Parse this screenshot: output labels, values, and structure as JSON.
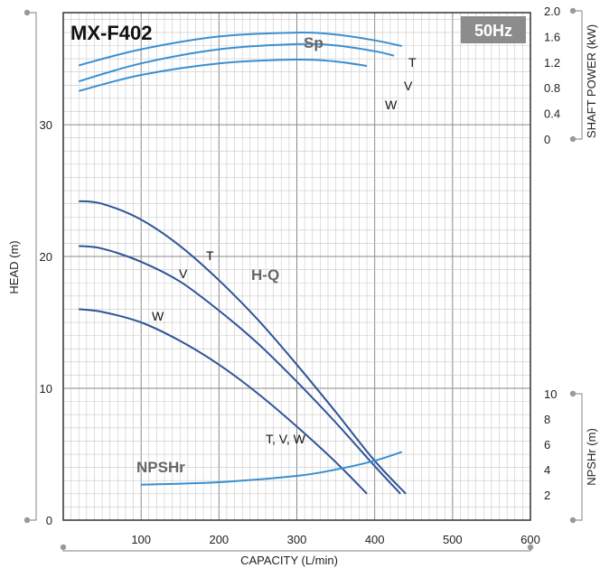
{
  "model": "MX-F402",
  "frequency_badge": "50Hz",
  "colors": {
    "hq": "#2f5597",
    "sp": "#3a8fd1",
    "npshr": "#3a8fd1",
    "grid_minor": "#c8c8c8",
    "grid_major": "#8a8a8a",
    "badge": "#8c8c8c",
    "axis_line": "#999999"
  },
  "chart_data": {
    "type": "line",
    "xlabel": "CAPACITY (L/min)",
    "xlim": [
      0,
      600
    ],
    "x_ticks": [
      "100",
      "200",
      "300",
      "400",
      "500",
      "600"
    ],
    "axes": {
      "head": {
        "label": "HEAD (m)",
        "lim": [
          0,
          38.5
        ],
        "ticks": [
          "0",
          "10",
          "20",
          "30"
        ]
      },
      "shaft_power": {
        "label": "SHAFT POWER (kW)",
        "range": [
          0,
          2.0
        ],
        "ticks": [
          "0",
          "0.4",
          "0.8",
          "1.2",
          "1.6",
          "2.0"
        ]
      },
      "npshr": {
        "label": "NPSHr (m)",
        "range": [
          2,
          10
        ],
        "ticks": [
          "2",
          "4",
          "6",
          "8",
          "10"
        ]
      }
    },
    "groups": [
      {
        "label": "H-Q",
        "axis": "head",
        "series": [
          {
            "name": "T",
            "x": [
              20,
              50,
              100,
              150,
              200,
              250,
              300,
              350,
              400,
              440
            ],
            "y": [
              24.2,
              24.0,
              22.8,
              20.8,
              18.2,
              15.2,
              11.8,
              8.2,
              4.5,
              2.0
            ]
          },
          {
            "name": "V",
            "x": [
              20,
              50,
              100,
              150,
              200,
              250,
              300,
              350,
              400,
              433
            ],
            "y": [
              20.8,
              20.6,
              19.6,
              18.1,
              15.9,
              13.4,
              10.5,
              7.4,
              4.1,
              2.0
            ]
          },
          {
            "name": "W",
            "x": [
              20,
              50,
              100,
              150,
              200,
              250,
              300,
              350,
              390
            ],
            "y": [
              16.0,
              15.8,
              15.0,
              13.6,
              11.8,
              9.6,
              7.1,
              4.4,
              2.0
            ]
          }
        ]
      },
      {
        "label": "Sp",
        "axis": "shaft_power",
        "series": [
          {
            "name": "T",
            "x": [
              20,
              100,
              200,
              300,
              350,
              400,
              435
            ],
            "y": [
              1.15,
              1.4,
              1.6,
              1.66,
              1.63,
              1.54,
              1.45
            ]
          },
          {
            "name": "V",
            "x": [
              20,
              100,
              200,
              300,
              350,
              400,
              425
            ],
            "y": [
              0.9,
              1.18,
              1.4,
              1.48,
              1.46,
              1.37,
              1.3
            ]
          },
          {
            "name": "W",
            "x": [
              20,
              100,
              200,
              300,
              350,
              390
            ],
            "y": [
              0.75,
              1.0,
              1.18,
              1.24,
              1.21,
              1.14
            ]
          }
        ]
      },
      {
        "label": "NPSHr",
        "axis": "npshr",
        "series": [
          {
            "name": "T, V, W",
            "x": [
              100,
              200,
              300,
              350,
              400,
              435
            ],
            "y": [
              2.8,
              3.0,
              3.5,
              4.0,
              4.7,
              5.4
            ]
          }
        ]
      }
    ]
  }
}
